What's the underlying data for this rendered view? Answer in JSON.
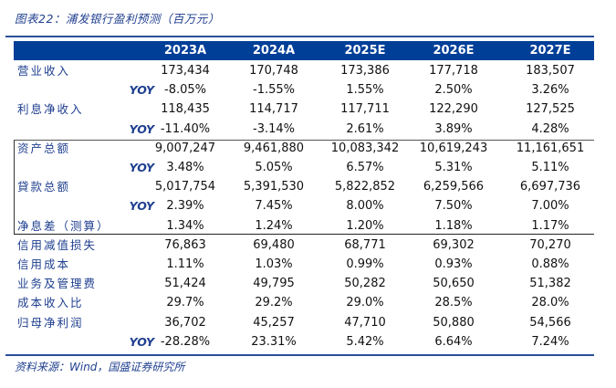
{
  "title": "图表22：浦发银行盈利预测（百万元）",
  "columns": [
    "2023A",
    "2024A",
    "2025E",
    "2026E",
    "2027E"
  ],
  "rows": [
    {
      "label": "营业收入",
      "values": [
        "173,434",
        "170,748",
        "173,386",
        "177,718",
        "183,507"
      ]
    },
    {
      "label": "YOY",
      "yoy": true,
      "values": [
        "-8.05%",
        "-1.55%",
        "1.55%",
        "2.50%",
        "3.26%"
      ]
    },
    {
      "label": "利息净收入",
      "values": [
        "118,435",
        "114,717",
        "117,711",
        "122,290",
        "127,525"
      ]
    },
    {
      "label": "YOY",
      "yoy": true,
      "values": [
        "-11.40%",
        "-3.14%",
        "2.61%",
        "3.89%",
        "4.28%"
      ]
    },
    {
      "label": "资产总额",
      "values": [
        "9,007,247",
        "9,461,880",
        "10,083,342",
        "10,619,243",
        "11,161,651"
      ]
    },
    {
      "label": "YOY",
      "yoy": true,
      "values": [
        "3.48%",
        "5.05%",
        "6.57%",
        "5.31%",
        "5.11%"
      ]
    },
    {
      "label": "貸款总额",
      "values": [
        "5,017,754",
        "5,391,530",
        "5,822,852",
        "6,259,566",
        "6,697,736"
      ]
    },
    {
      "label": "YOY",
      "yoy": true,
      "values": [
        "2.39%",
        "7.45%",
        "8.00%",
        "7.50%",
        "7.00%"
      ]
    },
    {
      "label": "净息差（测算）",
      "values": [
        "1.34%",
        "1.24%",
        "1.20%",
        "1.18%",
        "1.17%"
      ]
    },
    {
      "label": "信用减值损失",
      "values": [
        "76,863",
        "69,480",
        "68,771",
        "69,302",
        "70,270"
      ]
    },
    {
      "label": "信用成本",
      "values": [
        "1.11%",
        "1.03%",
        "0.99%",
        "0.93%",
        "0.88%"
      ]
    },
    {
      "label": "业务及管理费",
      "values": [
        "51,424",
        "49,795",
        "50,282",
        "50,650",
        "51,382"
      ]
    },
    {
      "label": "成本收入比",
      "values": [
        "29.7%",
        "29.2%",
        "29.0%",
        "28.5%",
        "28.0%"
      ]
    },
    {
      "label": "归母净利润",
      "values": [
        "36,702",
        "45,257",
        "47,710",
        "50,880",
        "54,566"
      ]
    },
    {
      "label": "YOY",
      "yoy": true,
      "values": [
        "-28.28%",
        "23.31%",
        "5.42%",
        "6.64%",
        "7.24%"
      ]
    }
  ],
  "source": "资料来源：Wind，国盛证券研究所",
  "colors": {
    "header_bg": "#003f98",
    "label_text": "#1f3f8f"
  }
}
